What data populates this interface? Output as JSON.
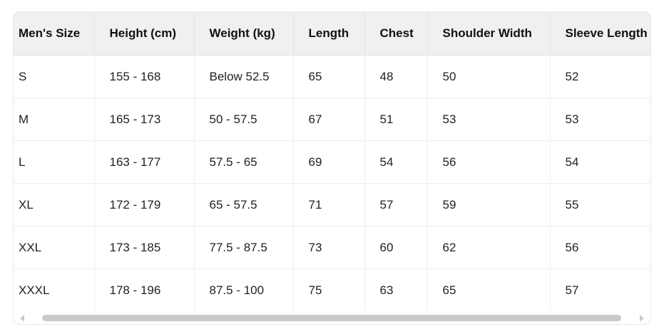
{
  "table": {
    "headers": [
      "Men's Size",
      "Height (cm)",
      "Weight (kg)",
      "Length",
      "Chest",
      "Shoulder Width",
      "Sleeve Length"
    ],
    "rows": [
      [
        "S",
        "155 - 168",
        "Below 52.5",
        "65",
        "48",
        "50",
        "52"
      ],
      [
        "M",
        "165 - 173",
        "50 - 57.5",
        "67",
        "51",
        "53",
        "53"
      ],
      [
        "L",
        "163 - 177",
        "57.5 - 65",
        "69",
        "54",
        "56",
        "54"
      ],
      [
        "XL",
        "172 - 179",
        "65 - 57.5",
        "71",
        "57",
        "59",
        "55"
      ],
      [
        "XXL",
        "173 - 185",
        "77.5 - 87.5",
        "73",
        "60",
        "62",
        "56"
      ],
      [
        "XXXL",
        "178 - 196",
        "87.5 - 100",
        "75",
        "63",
        "65",
        "57"
      ]
    ]
  },
  "scrollbar": {
    "orientation": "horizontal",
    "position_percent": 0
  }
}
